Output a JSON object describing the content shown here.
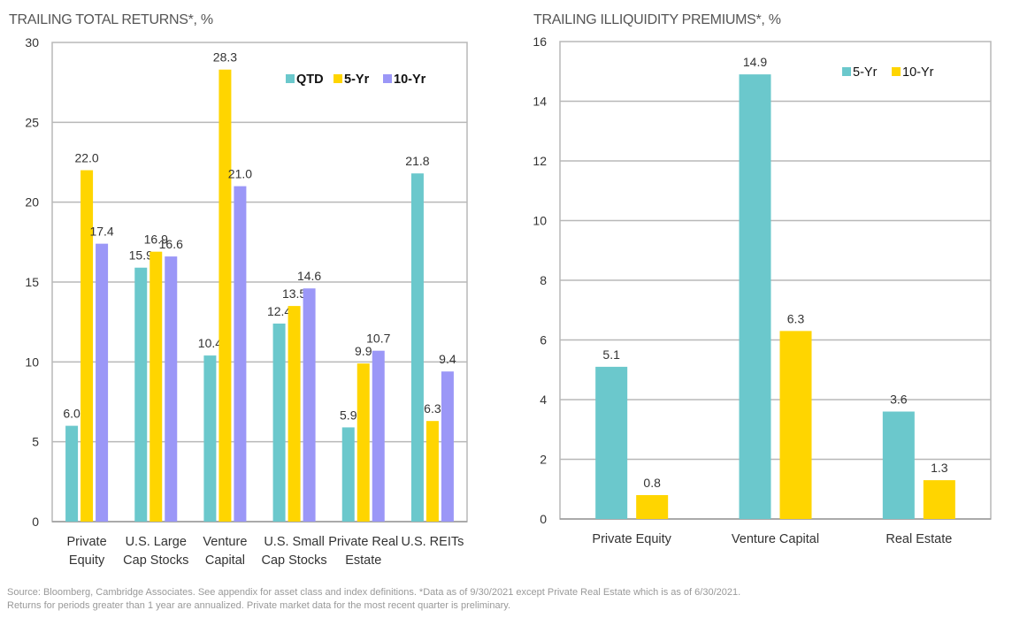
{
  "chart_data": [
    {
      "type": "bar",
      "title": "TRAILING TOTAL RETURNS*, %",
      "xlabel": "",
      "ylabel": "",
      "ylim": [
        0,
        30
      ],
      "yticks": [
        0,
        5,
        10,
        15,
        20,
        25,
        30
      ],
      "grid": true,
      "legend": "top-right",
      "legend_bold": true,
      "categories": [
        [
          "Private",
          "Equity"
        ],
        [
          "U.S. Large",
          "Cap Stocks"
        ],
        [
          "Venture",
          "Capital"
        ],
        [
          "U.S. Small",
          "Cap Stocks"
        ],
        [
          "Private Real",
          "Estate"
        ],
        [
          "U.S. REITs"
        ]
      ],
      "series": [
        {
          "name": "QTD",
          "color": "#6BC8CC",
          "values": [
            6.0,
            15.9,
            10.4,
            12.4,
            5.9,
            21.8
          ]
        },
        {
          "name": "5-Yr",
          "color": "#FFD500",
          "values": [
            22.0,
            16.9,
            28.3,
            13.5,
            9.9,
            6.3
          ]
        },
        {
          "name": "10-Yr",
          "color": "#9B97F7",
          "values": [
            17.4,
            16.6,
            21.0,
            14.6,
            10.7,
            9.4
          ]
        }
      ]
    },
    {
      "type": "bar",
      "title": "TRAILING ILLIQUIDITY PREMIUMS*, %",
      "xlabel": "",
      "ylabel": "",
      "ylim": [
        0,
        16
      ],
      "yticks": [
        0,
        2,
        4,
        6,
        8,
        10,
        12,
        14,
        16
      ],
      "grid": true,
      "legend": "top-right",
      "legend_bold": false,
      "categories": [
        [
          "Private Equity"
        ],
        [
          "Venture Capital"
        ],
        [
          "Real Estate"
        ]
      ],
      "series": [
        {
          "name": "5-Yr",
          "color": "#6BC8CC",
          "values": [
            5.1,
            14.9,
            3.6
          ]
        },
        {
          "name": "10-Yr",
          "color": "#FFD500",
          "values": [
            0.8,
            6.3,
            1.3
          ]
        }
      ]
    }
  ],
  "footnote": {
    "line1": "Source: Bloomberg, Cambridge Associates. See appendix for asset class and index definitions. *Data as of 9/30/2021 except Private Real Estate which is as of 6/30/2021.",
    "line2": "Returns for periods greater than 1 year are annualized. Private market data for the most recent quarter is preliminary."
  }
}
